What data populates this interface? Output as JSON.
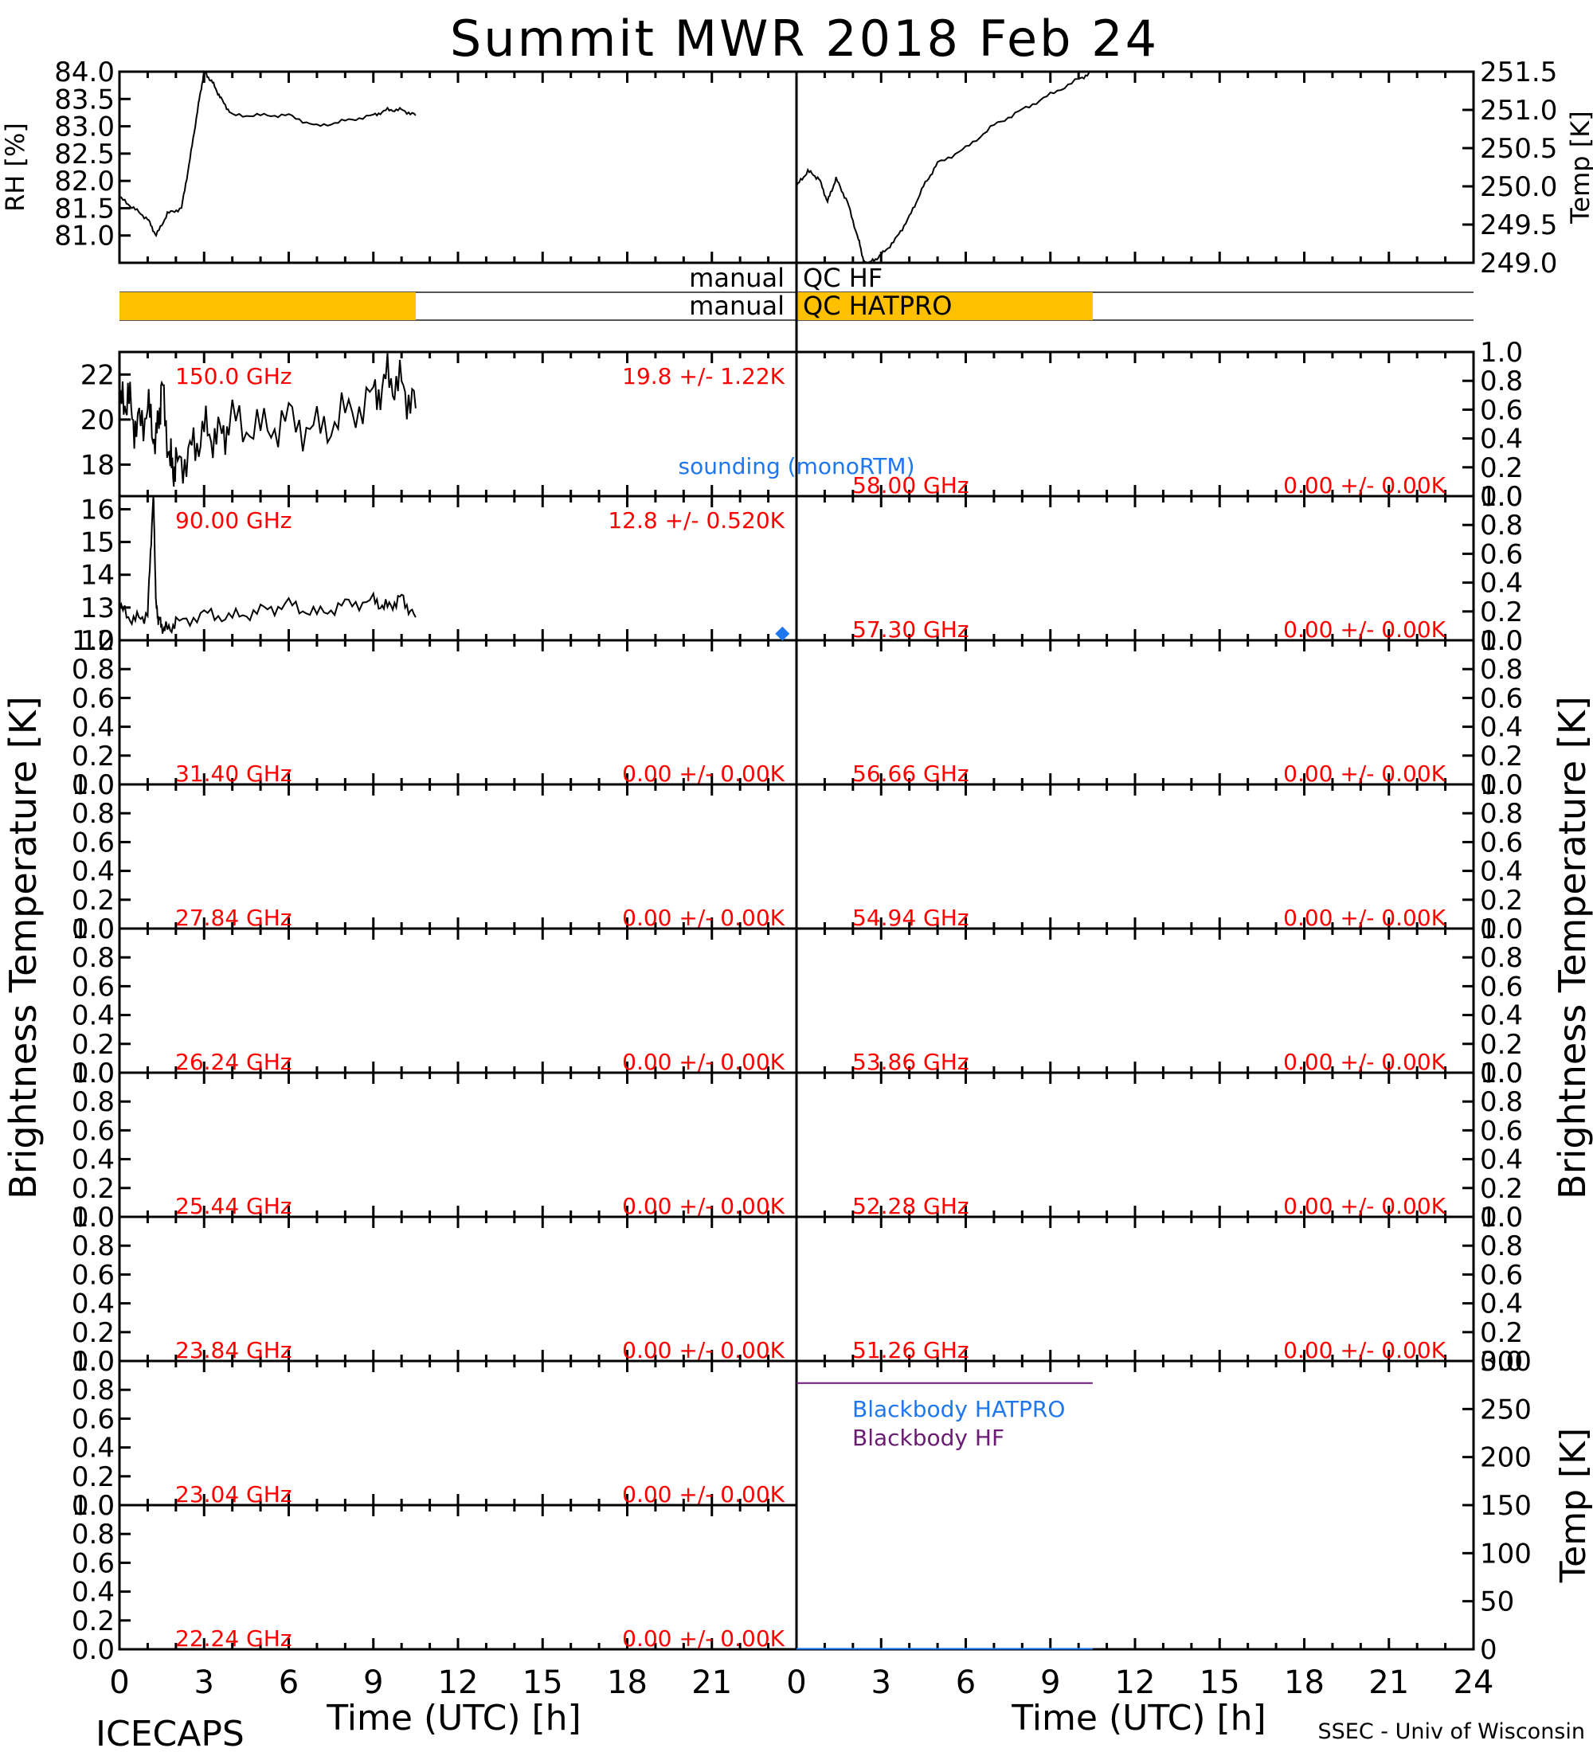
{
  "title": "Summit MWR 2018 Feb 24",
  "footer": {
    "left": "ICECAPS",
    "right": "SSEC - Univ of Wisconsin"
  },
  "colors": {
    "data": "#000000",
    "label_red": "#ff0000",
    "qc_flag": "#ffc000",
    "hatpro_blue": "#1f77ee",
    "hf_purple": "#6a1b72"
  },
  "chart_data": [
    {
      "id": "rh",
      "type": "line",
      "ylabel": "RH [%]",
      "ylim": [
        80.5,
        84.0
      ],
      "yticks": [
        "81.0",
        "81.5",
        "82.0",
        "82.5",
        "83.0",
        "83.5",
        "84.0"
      ],
      "xlim": [
        0,
        24
      ],
      "series": [
        {
          "x": [
            0,
            0.5,
            1,
            1.3,
            1.7,
            2.2,
            2.5,
            2.8,
            3.0,
            3.3,
            3.6,
            4,
            5,
            6,
            7,
            8,
            9,
            9.5,
            10,
            10.5
          ],
          "y": [
            81.7,
            81.5,
            81.3,
            81.0,
            81.4,
            81.5,
            82.4,
            83.4,
            84.0,
            83.8,
            83.5,
            83.2,
            83.2,
            83.2,
            83.0,
            83.1,
            83.2,
            83.3,
            83.3,
            83.2
          ]
        }
      ]
    },
    {
      "id": "temp",
      "type": "line",
      "ylabel": "Temp [K]",
      "ylim": [
        249.0,
        251.5
      ],
      "yticks": [
        "249.0",
        "249.5",
        "250.0",
        "250.5",
        "251.0",
        "251.5"
      ],
      "xlim": [
        0,
        24
      ],
      "series": [
        {
          "x": [
            0,
            0.4,
            0.8,
            1.1,
            1.4,
            1.8,
            2.2,
            2.4,
            2.6,
            3.0,
            3.5,
            4.0,
            4.5,
            5,
            6,
            7,
            8,
            9,
            10,
            10.5
          ],
          "y": [
            250.0,
            250.2,
            250.1,
            249.8,
            250.1,
            249.8,
            249.3,
            249.0,
            249.0,
            249.1,
            249.3,
            249.6,
            250.0,
            250.3,
            250.5,
            250.8,
            251.0,
            251.2,
            251.4,
            251.5
          ]
        }
      ]
    },
    {
      "id": "qc",
      "type": "bar",
      "rows": [
        {
          "label": "manual",
          "name": "QC HF",
          "flag_ranges": []
        },
        {
          "label": "manual",
          "name": "QC HATPRO",
          "flag_ranges": [
            [
              0,
              10.5
            ]
          ]
        }
      ]
    },
    {
      "id": "tb-150",
      "type": "line",
      "freq": "150.0 GHz",
      "stat": "19.8 +/-  1.22K",
      "ylim": [
        16.6,
        23.0
      ],
      "yticks": [
        "18",
        "20",
        "22"
      ],
      "sounding_label": "sounding (monoRTM)",
      "series": [
        {
          "x": [
            0,
            0.3,
            0.6,
            1.0,
            1.3,
            1.5,
            1.8,
            2.0,
            2.5,
            3,
            3.5,
            4,
            5,
            6,
            7,
            8,
            9,
            9.5,
            10,
            10.5
          ],
          "y": [
            20.5,
            21,
            19.5,
            20.5,
            19,
            21.5,
            18,
            17.8,
            18.5,
            19.5,
            19.2,
            20,
            19.5,
            20,
            19.5,
            20.2,
            21,
            21.8,
            21.5,
            20.5
          ]
        }
      ]
    },
    {
      "id": "tb-58-00",
      "type": "line",
      "freq": "58.00 GHz",
      "stat": "0.00 +/-  0.00K",
      "ylim": [
        0,
        1.0
      ],
      "yticks": [
        "0.0",
        "0.2",
        "0.4",
        "0.6",
        "0.8",
        "1.0"
      ],
      "series": []
    },
    {
      "id": "tb-90",
      "type": "line",
      "freq": "90.00 GHz",
      "stat": "12.8 +/- 0.520K",
      "ylim": [
        12.0,
        16.4
      ],
      "yticks": [
        "12",
        "13",
        "14",
        "15",
        "16"
      ],
      "series": [
        {
          "x": [
            0,
            0.5,
            1,
            1.2,
            1.3,
            1.4,
            1.6,
            2,
            3,
            4,
            5,
            6,
            7,
            8,
            9,
            9.5,
            10,
            10.5
          ],
          "y": [
            13.0,
            12.6,
            12.8,
            16.5,
            13.0,
            12.6,
            12.3,
            12.5,
            12.8,
            12.7,
            12.9,
            13.1,
            12.8,
            13.1,
            13.2,
            13.0,
            13.3,
            12.7
          ]
        }
      ],
      "sounding": {
        "x": 23.5,
        "y": 12.2
      }
    },
    {
      "id": "tb-57-30",
      "type": "line",
      "freq": "57.30 GHz",
      "stat": "0.00 +/-  0.00K",
      "ylim": [
        0,
        1.0
      ],
      "yticks": [
        "0.0",
        "0.2",
        "0.4",
        "0.6",
        "0.8",
        "1.0"
      ],
      "series": []
    },
    {
      "id": "tb-31-40",
      "type": "line",
      "freq": "31.40 GHz",
      "stat": "0.00 +/-  0.00K",
      "ylim": [
        0,
        1.0
      ],
      "yticks": [
        "0.0",
        "0.2",
        "0.4",
        "0.6",
        "0.8",
        "1.0"
      ],
      "series": []
    },
    {
      "id": "tb-56-66",
      "type": "line",
      "freq": "56.66 GHz",
      "stat": "0.00 +/-  0.00K",
      "ylim": [
        0,
        1.0
      ],
      "yticks": [
        "0.0",
        "0.2",
        "0.4",
        "0.6",
        "0.8",
        "1.0"
      ],
      "series": []
    },
    {
      "id": "tb-27-84",
      "type": "line",
      "freq": "27.84 GHz",
      "stat": "0.00 +/-  0.00K",
      "ylim": [
        0,
        1.0
      ],
      "yticks": [
        "0.0",
        "0.2",
        "0.4",
        "0.6",
        "0.8",
        "1.0"
      ],
      "series": []
    },
    {
      "id": "tb-54-94",
      "type": "line",
      "freq": "54.94 GHz",
      "stat": "0.00 +/-  0.00K",
      "ylim": [
        0,
        1.0
      ],
      "yticks": [
        "0.0",
        "0.2",
        "0.4",
        "0.6",
        "0.8",
        "1.0"
      ],
      "series": []
    },
    {
      "id": "tb-26-24",
      "type": "line",
      "freq": "26.24 GHz",
      "stat": "0.00 +/-  0.00K",
      "ylim": [
        0,
        1.0
      ],
      "yticks": [
        "0.0",
        "0.2",
        "0.4",
        "0.6",
        "0.8",
        "1.0"
      ],
      "series": []
    },
    {
      "id": "tb-53-86",
      "type": "line",
      "freq": "53.86 GHz",
      "stat": "0.00 +/-  0.00K",
      "ylim": [
        0,
        1.0
      ],
      "yticks": [
        "0.0",
        "0.2",
        "0.4",
        "0.6",
        "0.8",
        "1.0"
      ],
      "series": []
    },
    {
      "id": "tb-25-44",
      "type": "line",
      "freq": "25.44 GHz",
      "stat": "0.00 +/-  0.00K",
      "ylim": [
        0,
        1.0
      ],
      "yticks": [
        "0.0",
        "0.2",
        "0.4",
        "0.6",
        "0.8",
        "1.0"
      ],
      "series": []
    },
    {
      "id": "tb-52-28",
      "type": "line",
      "freq": "52.28 GHz",
      "stat": "0.00 +/-  0.00K",
      "ylim": [
        0,
        1.0
      ],
      "yticks": [
        "0.0",
        "0.2",
        "0.4",
        "0.6",
        "0.8",
        "1.0"
      ],
      "series": []
    },
    {
      "id": "tb-23-84",
      "type": "line",
      "freq": "23.84 GHz",
      "stat": "0.00 +/-  0.00K",
      "ylim": [
        0,
        1.0
      ],
      "yticks": [
        "0.0",
        "0.2",
        "0.4",
        "0.6",
        "0.8",
        "1.0"
      ],
      "series": []
    },
    {
      "id": "tb-51-26",
      "type": "line",
      "freq": "51.26 GHz",
      "stat": "0.00 +/-  0.00K",
      "ylim": [
        0,
        1.0
      ],
      "yticks": [
        "0.0",
        "0.2",
        "0.4",
        "0.6",
        "0.8",
        "1.0"
      ],
      "series": []
    },
    {
      "id": "tb-23-04",
      "type": "line",
      "freq": "23.04 GHz",
      "stat": "0.00 +/-  0.00K",
      "ylim": [
        0,
        1.0
      ],
      "yticks": [
        "0.0",
        "0.2",
        "0.4",
        "0.6",
        "0.8",
        "1.0"
      ],
      "series": []
    },
    {
      "id": "tb-22-24",
      "type": "line",
      "freq": "22.24 GHz",
      "stat": "0.00 +/-  0.00K",
      "ylim": [
        0,
        1.0
      ],
      "yticks": [
        "0.0",
        "0.2",
        "0.4",
        "0.6",
        "0.8",
        "1.0"
      ],
      "series": []
    },
    {
      "id": "blackbody",
      "type": "line",
      "ylabel": "Temp [K]",
      "ylim": [
        0,
        300
      ],
      "yticks": [
        "0",
        "50",
        "100",
        "150",
        "200",
        "250",
        "300"
      ],
      "xlim": [
        0,
        24
      ],
      "series": [
        {
          "name": "Blackbody HATPRO",
          "x": [
            0,
            10.5
          ],
          "y": [
            0.5,
            0.5
          ]
        },
        {
          "name": "Blackbody HF",
          "x": [
            0,
            10.5
          ],
          "y": [
            277,
            277
          ]
        }
      ]
    }
  ],
  "axes": {
    "left_ylabel": "Brightness Temperature [K]",
    "right_ylabel": "Brightness Temperature [K]",
    "xlabel": "Time (UTC) [h]",
    "xticks_left": [
      "0",
      "3",
      "6",
      "9",
      "12",
      "15",
      "18",
      "21"
    ],
    "xticks_right": [
      "0",
      "3",
      "6",
      "9",
      "12",
      "15",
      "18",
      "21",
      "24"
    ]
  }
}
